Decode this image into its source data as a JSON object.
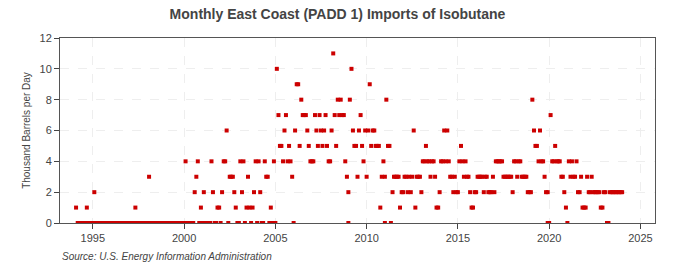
{
  "chart_data": {
    "type": "scatter",
    "title": "Monthly East Coast (PADD 1) Imports of Isobutane",
    "ylabel": "Thousand Barrels per Day",
    "annotations": [
      "Source: U.S. Energy Information Administration"
    ],
    "color": "#cc0000",
    "marker": "square",
    "grid": true,
    "xlim": [
      1993.2,
      2025.8
    ],
    "ylim": [
      0,
      12
    ],
    "xticks": [
      1995,
      2000,
      2005,
      2010,
      2015,
      2020,
      2025
    ],
    "yticks": [
      0,
      2,
      4,
      6,
      8,
      10,
      12
    ],
    "x": [
      1994.08,
      1994.67,
      1995.08,
      1997.33,
      1998.08,
      2000.08,
      2000.58,
      2000.67,
      2000.75,
      2000.92,
      2001.08,
      2001.5,
      2001.58,
      2001.83,
      2001.92,
      2002.08,
      2002.17,
      2002.25,
      2002.33,
      2002.5,
      2002.58,
      2002.67,
      2002.75,
      2002.83,
      2003.08,
      2003.17,
      2003.25,
      2003.42,
      2003.5,
      2003.58,
      2003.75,
      2003.83,
      2003.92,
      2004.08,
      2004.17,
      2004.42,
      2004.5,
      2004.58,
      2004.75,
      2004.92,
      2005.08,
      2005.17,
      2005.25,
      2005.33,
      2005.42,
      2005.5,
      2005.58,
      2005.67,
      2005.75,
      2005.83,
      2005.92,
      2006.08,
      2006.17,
      2006.25,
      2006.33,
      2006.42,
      2006.5,
      2006.58,
      2006.67,
      2006.75,
      2006.83,
      2006.92,
      2007.0,
      2007.08,
      2007.17,
      2007.25,
      2007.33,
      2007.42,
      2007.5,
      2007.58,
      2007.67,
      2007.75,
      2007.83,
      2007.92,
      2008.0,
      2008.08,
      2008.17,
      2008.25,
      2008.33,
      2008.42,
      2008.5,
      2008.58,
      2008.67,
      2008.75,
      2008.83,
      2008.92,
      2009.0,
      2009.08,
      2009.17,
      2009.25,
      2009.33,
      2009.42,
      2009.5,
      2009.58,
      2009.67,
      2009.75,
      2009.83,
      2009.92,
      2010.0,
      2010.08,
      2010.17,
      2010.25,
      2010.33,
      2010.42,
      2010.5,
      2010.58,
      2010.67,
      2010.75,
      2010.83,
      2010.92,
      2011.0,
      2011.08,
      2011.17,
      2011.25,
      2011.42,
      2011.5,
      2011.58,
      2011.67,
      2011.75,
      2011.83,
      2011.92,
      2012.0,
      2012.08,
      2012.17,
      2012.25,
      2012.33,
      2012.42,
      2012.5,
      2012.58,
      2012.67,
      2012.75,
      2012.83,
      2012.92,
      2013.0,
      2013.08,
      2013.17,
      2013.25,
      2013.33,
      2013.42,
      2013.5,
      2013.58,
      2013.67,
      2013.75,
      2013.83,
      2013.92,
      2014.0,
      2014.08,
      2014.17,
      2014.25,
      2014.33,
      2014.42,
      2014.5,
      2014.58,
      2014.67,
      2014.75,
      2014.83,
      2014.92,
      2015.0,
      2015.08,
      2015.17,
      2015.25,
      2015.33,
      2015.42,
      2015.5,
      2015.58,
      2015.67,
      2015.75,
      2015.83,
      2015.92,
      2016.0,
      2016.08,
      2016.17,
      2016.25,
      2016.33,
      2016.42,
      2016.5,
      2016.58,
      2016.67,
      2016.75,
      2016.83,
      2016.92,
      2017.0,
      2017.08,
      2017.17,
      2017.25,
      2017.33,
      2017.42,
      2017.5,
      2017.58,
      2017.67,
      2017.75,
      2017.83,
      2017.92,
      2018.0,
      2018.08,
      2018.17,
      2018.25,
      2018.33,
      2018.42,
      2018.5,
      2018.58,
      2018.67,
      2018.75,
      2018.83,
      2018.92,
      2019.0,
      2019.08,
      2019.17,
      2019.25,
      2019.33,
      2019.42,
      2019.5,
      2019.58,
      2019.67,
      2019.75,
      2019.83,
      2019.92,
      2020.08,
      2020.17,
      2020.25,
      2020.33,
      2020.42,
      2020.5,
      2020.58,
      2020.67,
      2020.75,
      2020.83,
      2020.92,
      2021.08,
      2021.17,
      2021.25,
      2021.33,
      2021.42,
      2021.5,
      2021.58,
      2021.67,
      2021.75,
      2021.83,
      2021.92,
      2022.0,
      2022.08,
      2022.17,
      2022.25,
      2022.33,
      2022.42,
      2022.5,
      2022.58,
      2022.67,
      2022.75,
      2022.83,
      2022.92,
      2023.0,
      2023.08,
      2023.33,
      2023.42,
      2023.5,
      2023.58,
      2023.67,
      2023.75,
      2023.83,
      2023.92,
      2024.0,
      1994.17,
      1994.25,
      1994.33,
      1994.42,
      1994.5,
      1994.58,
      1994.75,
      1994.83,
      1994.92,
      1995.0,
      1995.17,
      1995.25,
      1995.33,
      1995.42,
      1995.5,
      1995.58,
      1995.67,
      1995.75,
      1995.83,
      1995.92,
      1996.0,
      1996.08,
      1996.17,
      1996.25,
      1996.33,
      1996.42,
      1996.5,
      1996.58,
      1996.67,
      1996.75,
      1996.83,
      1996.92,
      1997.0,
      1997.08,
      1997.17,
      1997.25,
      1997.42,
      1997.5,
      1997.58,
      1997.67,
      1997.75,
      1997.83,
      1997.92,
      1998.0,
      1998.17,
      1998.25,
      1998.33,
      1998.42,
      1998.5,
      1998.58,
      1998.67,
      1998.75,
      1998.83,
      1998.92,
      1999.0,
      1999.08,
      1999.17,
      1999.25,
      1999.33,
      1999.42,
      1999.5,
      1999.58,
      1999.67,
      1999.75,
      1999.83,
      1999.92,
      2000.0,
      2000.17,
      2000.25,
      2000.33,
      2000.42,
      2000.5,
      2000.83,
      2001.0,
      2001.17,
      2001.25,
      2001.33,
      2001.42,
      2001.67,
      2001.75,
      2002.0,
      2002.42,
      2002.92,
      2003.0,
      2003.33,
      2003.67,
      2004.0,
      2004.25,
      2004.33,
      2004.67,
      2004.83,
      2005.0,
      2006.0,
      2009.0,
      2011.0,
      2011.33,
      2019.92,
      2020.0,
      2021.0,
      2023.17,
      2023.25
    ],
    "values": [
      1,
      1,
      2,
      1,
      3,
      4,
      2,
      3,
      4,
      1,
      2,
      4,
      2,
      1,
      1,
      2,
      4,
      4,
      6,
      3,
      3,
      3,
      2,
      1,
      4,
      2,
      4,
      1,
      3,
      1,
      1,
      2,
      4,
      4,
      2,
      4,
      3,
      3,
      1,
      4,
      10,
      7,
      5,
      5,
      4,
      6,
      7,
      4,
      5,
      4,
      3,
      6,
      9,
      9,
      5,
      8,
      7,
      7,
      7,
      6,
      5,
      4,
      4,
      4,
      7,
      6,
      5,
      7,
      6,
      5,
      6,
      7,
      5,
      4,
      4,
      6,
      11,
      7,
      5,
      8,
      7,
      8,
      7,
      7,
      4,
      3,
      2,
      8,
      10,
      6,
      5,
      5,
      3,
      6,
      7,
      5,
      4,
      6,
      3,
      6,
      9,
      5,
      6,
      6,
      5,
      5,
      5,
      1,
      3,
      4,
      3,
      8,
      5,
      5,
      2,
      3,
      3,
      3,
      3,
      1,
      2,
      2,
      3,
      3,
      2,
      3,
      2,
      3,
      6,
      1,
      3,
      3,
      3,
      2,
      4,
      4,
      5,
      4,
      4,
      3,
      4,
      4,
      3,
      1,
      1,
      2,
      4,
      4,
      6,
      4,
      6,
      4,
      3,
      3,
      2,
      3,
      2,
      2,
      4,
      5,
      4,
      3,
      4,
      3,
      3,
      2,
      1,
      1,
      2,
      2,
      3,
      3,
      3,
      3,
      2,
      3,
      3,
      2,
      2,
      2,
      3,
      2,
      4,
      4,
      4,
      4,
      4,
      3,
      3,
      3,
      3,
      3,
      3,
      2,
      4,
      4,
      3,
      4,
      4,
      3,
      3,
      3,
      3,
      2,
      2,
      2,
      8,
      6,
      5,
      5,
      4,
      6,
      4,
      4,
      3,
      2,
      2,
      7,
      4,
      4,
      5,
      4,
      4,
      4,
      3,
      3,
      2,
      1,
      4,
      3,
      4,
      3,
      3,
      4,
      2,
      2,
      3,
      1,
      1,
      1,
      3,
      2,
      2,
      3,
      2,
      2,
      2,
      2,
      2,
      1,
      1,
      2,
      2,
      2,
      2,
      2,
      2,
      2,
      2,
      2,
      2,
      2,
      0,
      0,
      0,
      0,
      0,
      0,
      0,
      0,
      0,
      0,
      0,
      0,
      0,
      0,
      0,
      0,
      0,
      0,
      0,
      0,
      0,
      0,
      0,
      0,
      0,
      0,
      0,
      0,
      0,
      0,
      0,
      0,
      0,
      0,
      0,
      0,
      0,
      0,
      0,
      0,
      0,
      0,
      0,
      0,
      0,
      0,
      0,
      0,
      0,
      0,
      0,
      0,
      0,
      0,
      0,
      0,
      0,
      0,
      0,
      0,
      0,
      0,
      0,
      0,
      0,
      0,
      0,
      0,
      0,
      0,
      0,
      0,
      0,
      0,
      0,
      0,
      0,
      0,
      0,
      0,
      0,
      0,
      0,
      0,
      0,
      0,
      0,
      0,
      0,
      0,
      0,
      0,
      0,
      0,
      0,
      0,
      0,
      0,
      0,
      0,
      0
    ]
  }
}
